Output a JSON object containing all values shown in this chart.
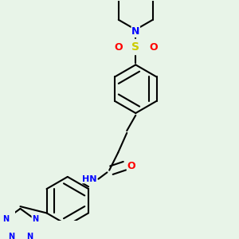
{
  "bg_color": "#e8f4e8",
  "bond_color": "#000000",
  "atom_colors": {
    "N": "#0000ff",
    "O": "#ff0000",
    "S": "#cccc00",
    "H": "#888888",
    "C": "#000000"
  },
  "line_width": 1.5,
  "font_size": 9
}
